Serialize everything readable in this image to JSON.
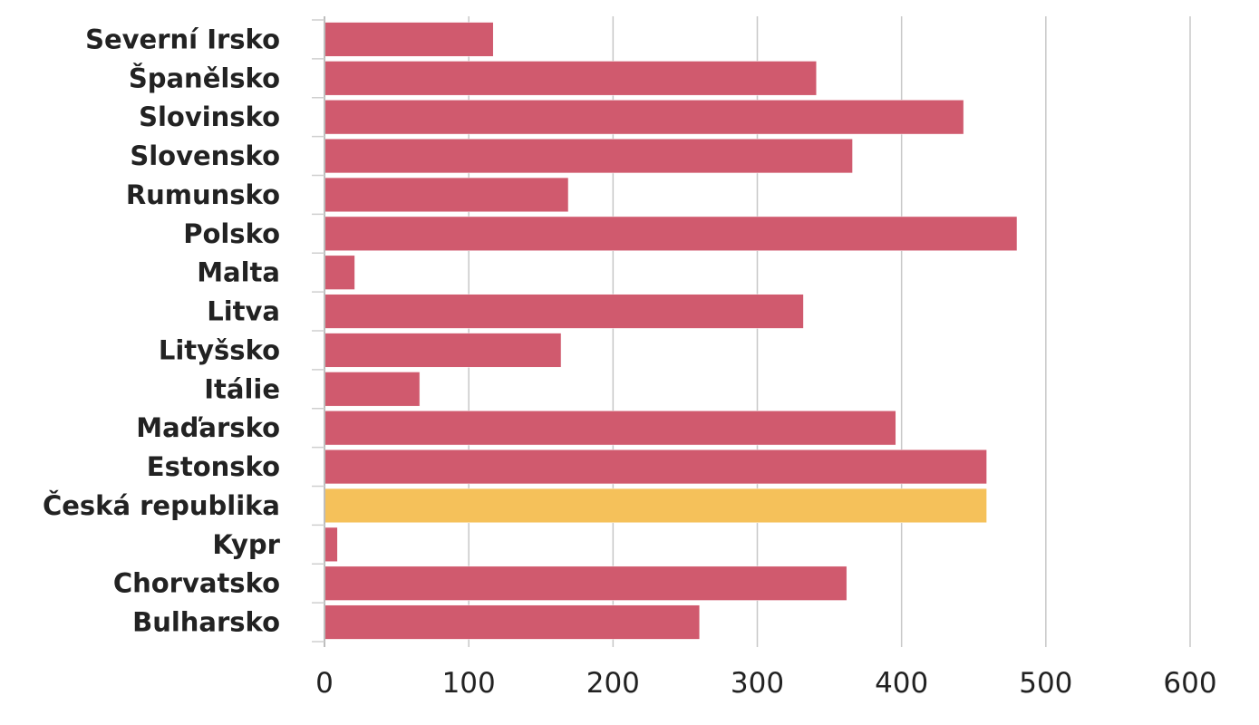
{
  "chart_data": {
    "type": "bar",
    "orientation": "horizontal",
    "categories": [
      "Severní Irsko",
      "Španělsko",
      "Slovinsko",
      "Slovensko",
      "Rumunsko",
      "Polsko",
      "Malta",
      "Litva",
      "Lityšsko",
      "Itálie",
      "Maďarsko",
      "Estonsko",
      "Česká republika",
      "Kypr",
      "Chorvatsko",
      "Bulharsko"
    ],
    "values": [
      117,
      341,
      443,
      366,
      169,
      480,
      21,
      332,
      164,
      66,
      396,
      459,
      459,
      9,
      362,
      260
    ],
    "colors": [
      "#d05a6e",
      "#d05a6e",
      "#d05a6e",
      "#d05a6e",
      "#d05a6e",
      "#d05a6e",
      "#d05a6e",
      "#d05a6e",
      "#d05a6e",
      "#d05a6e",
      "#d05a6e",
      "#d05a6e",
      "#f5c15a",
      "#d05a6e",
      "#d05a6e",
      "#d05a6e"
    ],
    "xlim": [
      0,
      600
    ],
    "xticks": [
      0,
      100,
      200,
      300,
      400,
      500,
      600
    ],
    "xtick_labels": [
      "0",
      "100",
      "200",
      "300",
      "400",
      "500",
      "600"
    ],
    "grid": "vertical",
    "legend": "none",
    "title": "",
    "xlabel": "",
    "ylabel": ""
  }
}
